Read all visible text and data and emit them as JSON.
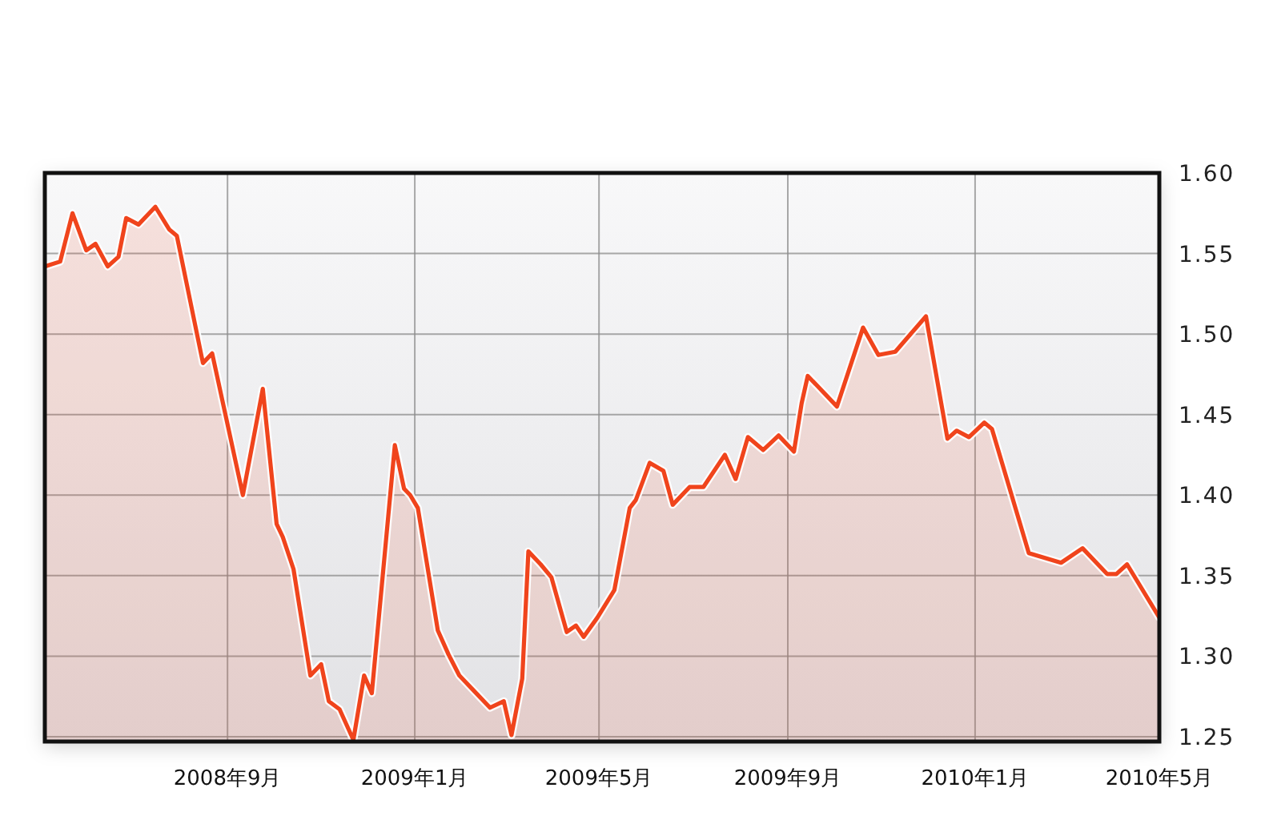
{
  "chart_data": {
    "type": "area",
    "color": "#f0441c",
    "x": [
      "2008-05-05",
      "2008-05-15",
      "2008-05-23",
      "2008-06-01",
      "2008-06-07",
      "2008-06-15",
      "2008-06-22",
      "2008-06-27",
      "2008-07-05",
      "2008-07-16",
      "2008-07-25",
      "2008-07-30",
      "2008-08-16",
      "2008-08-22",
      "2008-09-11",
      "2008-09-24",
      "2008-10-03",
      "2008-10-07",
      "2008-10-14",
      "2008-10-25",
      "2008-11-01",
      "2008-11-06",
      "2008-11-13",
      "2008-11-22",
      "2008-11-29",
      "2008-12-04",
      "2008-12-19",
      "2008-12-25",
      "2008-12-29",
      "2009-01-03",
      "2009-01-16",
      "2009-01-23",
      "2009-01-30",
      "2009-02-09",
      "2009-02-19",
      "2009-02-28",
      "2009-03-05",
      "2009-03-12",
      "2009-03-16",
      "2009-03-24",
      "2009-03-31",
      "2009-04-10",
      "2009-04-16",
      "2009-04-21",
      "2009-04-30",
      "2009-05-11",
      "2009-05-21",
      "2009-05-25",
      "2009-06-03",
      "2009-06-12",
      "2009-06-18",
      "2009-06-29",
      "2009-07-08",
      "2009-07-22",
      "2009-07-29",
      "2009-08-06",
      "2009-08-16",
      "2009-08-26",
      "2009-09-05",
      "2009-09-10",
      "2009-09-14",
      "2009-10-03",
      "2009-10-20",
      "2009-10-30",
      "2009-11-10",
      "2009-11-30",
      "2009-12-14",
      "2009-12-20",
      "2009-12-28",
      "2010-01-07",
      "2010-01-12",
      "2010-02-05",
      "2010-02-26",
      "2010-03-12",
      "2010-03-28",
      "2010-04-03",
      "2010-04-10",
      "2010-05-01"
    ],
    "values": [
      1.542,
      1.545,
      1.575,
      1.552,
      1.556,
      1.542,
      1.548,
      1.572,
      1.568,
      1.579,
      1.565,
      1.561,
      1.482,
      1.488,
      1.4,
      1.466,
      1.382,
      1.374,
      1.354,
      1.288,
      1.295,
      1.272,
      1.267,
      1.248,
      1.288,
      1.277,
      1.431,
      1.404,
      1.4,
      1.392,
      1.316,
      1.301,
      1.288,
      1.278,
      1.268,
      1.272,
      1.251,
      1.286,
      1.365,
      1.357,
      1.349,
      1.315,
      1.319,
      1.312,
      1.324,
      1.341,
      1.392,
      1.397,
      1.42,
      1.415,
      1.394,
      1.405,
      1.405,
      1.425,
      1.41,
      1.436,
      1.428,
      1.437,
      1.427,
      1.457,
      1.474,
      1.455,
      1.504,
      1.487,
      1.489,
      1.511,
      1.435,
      1.44,
      1.436,
      1.445,
      1.441,
      1.364,
      1.358,
      1.367,
      1.351,
      1.351,
      1.357,
      1.324
    ],
    "xlim": [
      "2008-05-05",
      "2010-05-01"
    ],
    "xticks": [
      {
        "value": "2008-09-01",
        "label": "2008年9月"
      },
      {
        "value": "2009-01-01",
        "label": "2009年1月"
      },
      {
        "value": "2009-05-01",
        "label": "2009年5月"
      },
      {
        "value": "2009-09-01",
        "label": "2009年9月"
      },
      {
        "value": "2010-01-01",
        "label": "2010年1月"
      },
      {
        "value": "2010-05-01",
        "label": "2010年5月"
      }
    ],
    "ylim": [
      1.247,
      1.6
    ],
    "yticks": [
      1.25,
      {
        "value": 1.3,
        "label": "1.30"
      },
      1.35,
      {
        "value": 1.4,
        "label": "1.40"
      },
      1.45,
      {
        "value": 1.5,
        "label": "1.50"
      },
      1.55,
      {
        "value": 1.6,
        "label": "1.60"
      }
    ],
    "grid": true
  }
}
